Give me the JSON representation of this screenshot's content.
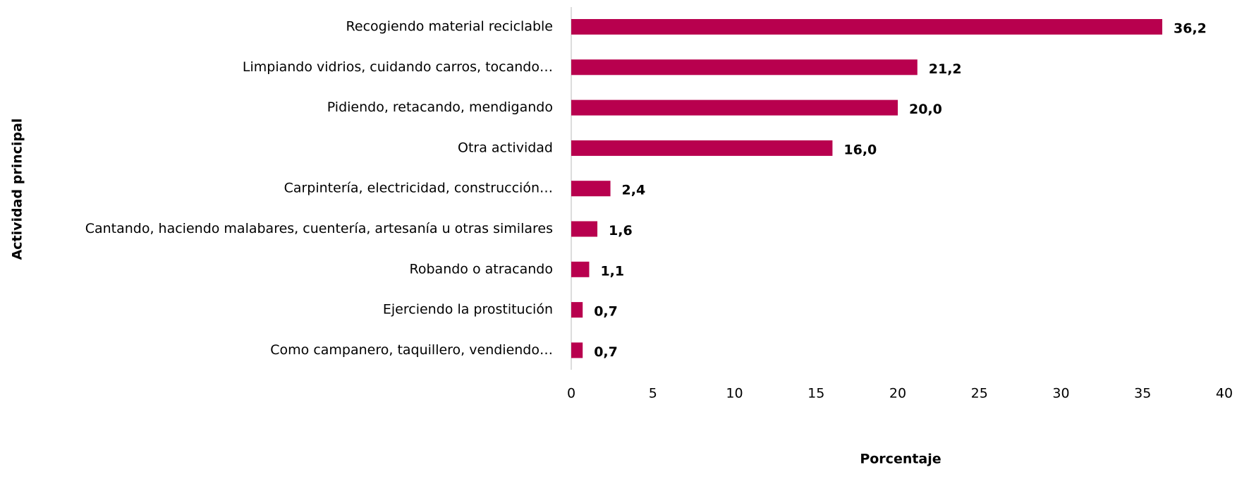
{
  "chart_data": {
    "type": "bar",
    "orientation": "horizontal",
    "xlabel": "Porcentaje",
    "ylabel": "Actividad principal",
    "categories": [
      "Recogiendo material reciclable",
      "Limpiando vidrios, cuidando carros, tocando…",
      "Pidiendo, retacando, mendigando",
      "Otra actividad",
      "Carpintería, electricidad, construcción…",
      "Cantando, haciendo malabares, cuentería, artesanía u otras similares",
      "Robando o atracando",
      "Ejerciendo la prostitución",
      "Como campanero, taquillero, vendiendo…"
    ],
    "values": [
      36.2,
      21.2,
      20.0,
      16.0,
      2.4,
      1.6,
      1.1,
      0.7,
      0.7
    ],
    "value_labels": [
      "36,2",
      "21,2",
      "20,0",
      "16,0",
      "2,4",
      "1,6",
      "1,1",
      "0,7",
      "0,7"
    ],
    "color": "#b8004e",
    "xlim": [
      0,
      40
    ],
    "xticks": [
      0,
      5,
      10,
      15,
      20,
      25,
      30,
      35,
      40
    ]
  }
}
